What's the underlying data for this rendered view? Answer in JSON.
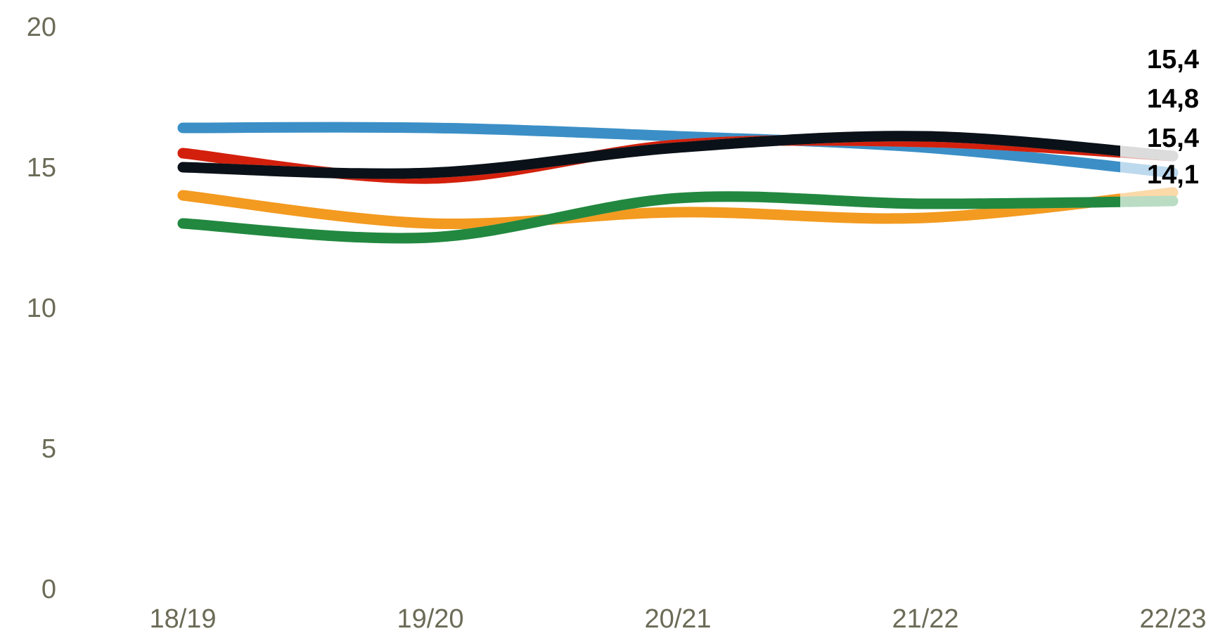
{
  "chart_data": {
    "type": "line",
    "categories": [
      "18/19",
      "19/20",
      "20/21",
      "21/22",
      "22/23"
    ],
    "ylim": [
      0,
      20
    ],
    "yticks": [
      0,
      5,
      10,
      15,
      20
    ],
    "grid": false,
    "series": [
      {
        "color": "#3b8fc6",
        "fade_color": "#bcd9ee",
        "values": [
          16.4,
          16.4,
          16.1,
          15.7,
          14.8
        ]
      },
      {
        "color": "#f39a20",
        "fade_color": "#fbd9a9",
        "values": [
          14.0,
          13.0,
          13.4,
          13.2,
          14.1
        ]
      },
      {
        "color": "#22883f",
        "fade_color": "#b9dcc3",
        "values": [
          13.0,
          12.5,
          13.9,
          13.7,
          13.8
        ]
      },
      {
        "color": "#d3200c",
        "fade_color": "#e6b6b0",
        "values": [
          15.5,
          14.6,
          15.8,
          15.9,
          15.4
        ]
      },
      {
        "color": "#0b1118",
        "fade_color": "#dcdcdc",
        "values": [
          15.0,
          14.8,
          15.7,
          16.1,
          15.4
        ]
      }
    ],
    "end_labels": [
      "15,4",
      "14,8",
      "15,4",
      "14,1"
    ]
  }
}
